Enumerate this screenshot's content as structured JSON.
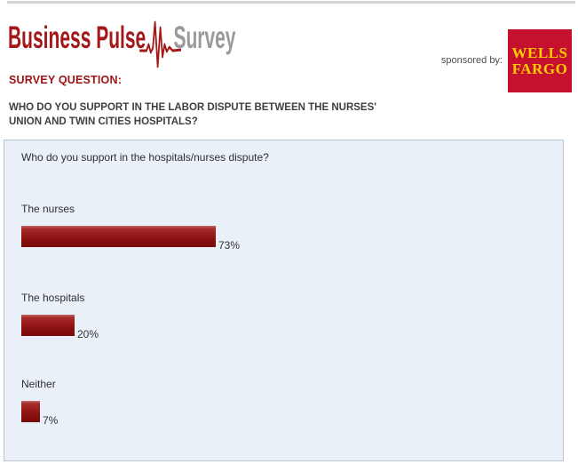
{
  "header": {
    "logo": {
      "part1": "Business Pulse",
      "part2": "Survey",
      "part1_color": "#a31818",
      "part2_color": "#9a9a9a",
      "ekg_icon": "pulse-ekg-icon"
    },
    "sponsored_label": "sponsored by:",
    "sponsor": {
      "line1": "WELLS",
      "line2": "FARGO",
      "bg_color": "#c6112e",
      "text_color": "#ffcb05"
    }
  },
  "survey": {
    "heading": "SURVEY QUESTION:",
    "heading_color": "#9b1313",
    "question_line1": "WHO DO YOU SUPPORT IN THE LABOR DISPUTE BETWEEN THE NURSES'",
    "question_line2": "UNION AND TWIN CITIES HOSPITALS?"
  },
  "chart_data": {
    "type": "bar",
    "orientation": "horizontal",
    "title": "Who do you support in the hospitals/nurses dispute?",
    "categories": [
      "The nurses",
      "The hospitals",
      "Neither"
    ],
    "values": [
      73,
      20,
      7
    ],
    "value_labels": [
      "73%",
      "20%",
      "7%"
    ],
    "xlim": [
      0,
      100
    ],
    "grid": false,
    "legend": false,
    "bar_color_top": "#bf6a68",
    "bar_color_bottom": "#7c0b0b",
    "panel_bg": "#eaf0f8",
    "panel_border": "#b7c5d6"
  }
}
